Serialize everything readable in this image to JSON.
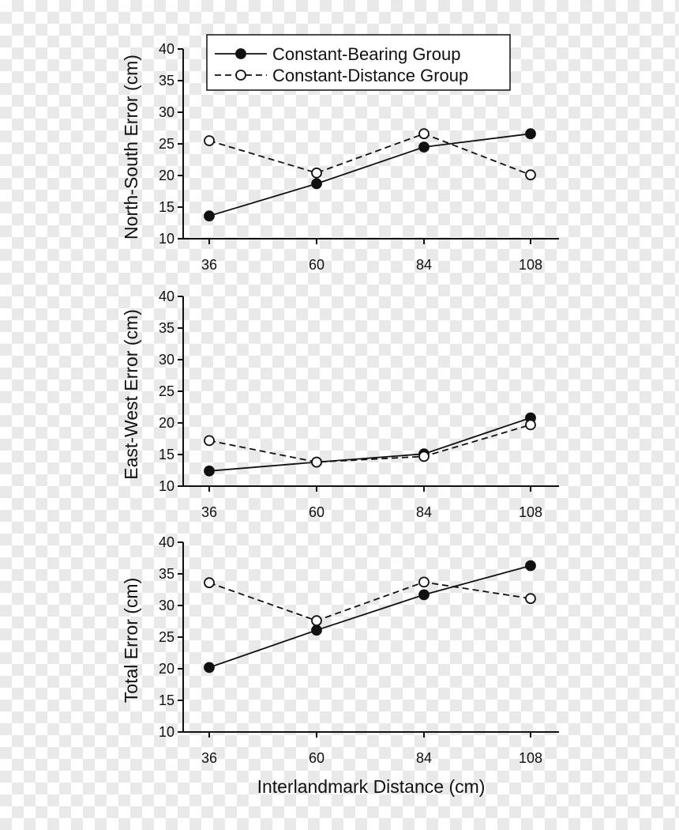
{
  "chart_data": [
    {
      "type": "line",
      "ylabel": "North-South Error (cm)",
      "xlabel": "",
      "categories": [
        "36",
        "60",
        "84",
        "108"
      ],
      "ylim": [
        10,
        40
      ],
      "yticks": [
        "10",
        "15",
        "20",
        "25",
        "30",
        "35",
        "40"
      ],
      "legend": "top-right",
      "series": [
        {
          "name": "Constant-Bearing Group",
          "marker": "filled-circle",
          "line": "solid",
          "values": [
            13.6,
            18.7,
            24.5,
            26.6
          ]
        },
        {
          "name": "Constant-Distance Group",
          "marker": "open-circle",
          "line": "dashed",
          "values": [
            25.5,
            20.4,
            26.6,
            20.1
          ]
        }
      ]
    },
    {
      "type": "line",
      "ylabel": "East-West Error (cm)",
      "xlabel": "",
      "categories": [
        "36",
        "60",
        "84",
        "108"
      ],
      "ylim": [
        10,
        40
      ],
      "yticks": [
        "10",
        "15",
        "20",
        "25",
        "30",
        "35",
        "40"
      ],
      "series": [
        {
          "name": "Constant-Bearing Group",
          "marker": "filled-circle",
          "line": "solid",
          "values": [
            12.4,
            13.8,
            15.1,
            20.8
          ]
        },
        {
          "name": "Constant-Distance Group",
          "marker": "open-circle",
          "line": "dashed",
          "values": [
            17.2,
            13.8,
            14.7,
            19.7
          ]
        }
      ]
    },
    {
      "type": "line",
      "ylabel": "Total Error (cm)",
      "xlabel": "Interlandmark Distance (cm)",
      "categories": [
        "36",
        "60",
        "84",
        "108"
      ],
      "ylim": [
        10,
        40
      ],
      "yticks": [
        "10",
        "15",
        "20",
        "25",
        "30",
        "35",
        "40"
      ],
      "series": [
        {
          "name": "Constant-Bearing Group",
          "marker": "filled-circle",
          "line": "solid",
          "values": [
            20.2,
            26.1,
            31.7,
            36.3
          ]
        },
        {
          "name": "Constant-Distance Group",
          "marker": "open-circle",
          "line": "dashed",
          "values": [
            33.6,
            27.6,
            33.7,
            31.1
          ]
        }
      ]
    }
  ]
}
